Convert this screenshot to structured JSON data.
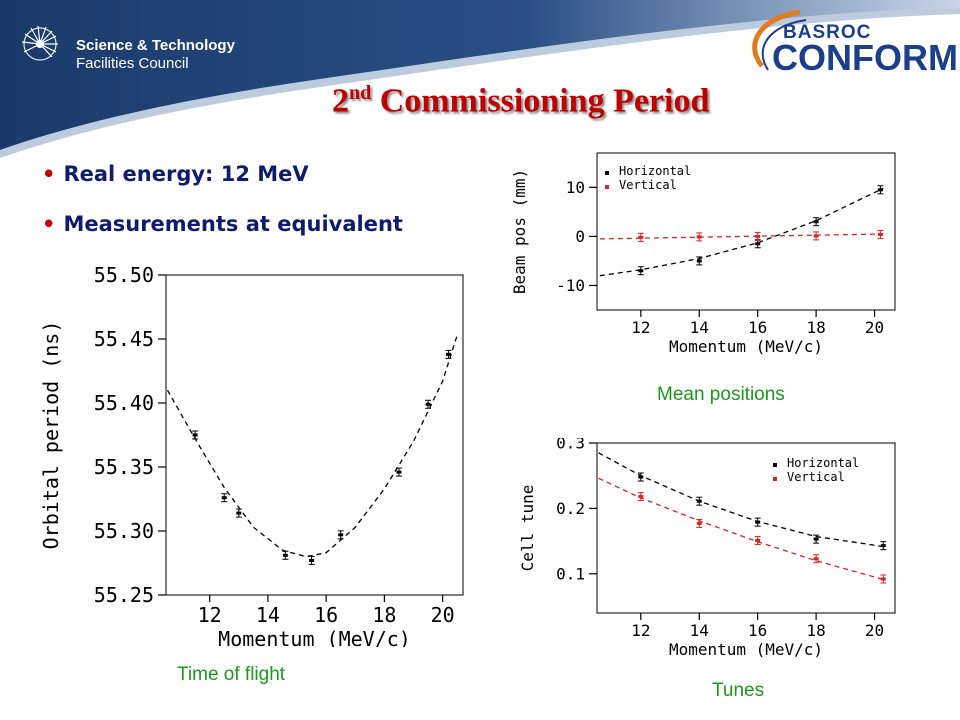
{
  "header": {
    "org_line1": "Science & Technology",
    "org_line2": "Facilities Council",
    "brand_top": "BASROC",
    "brand_main": "CONFORM",
    "colors": {
      "banner": "#1d3d6e",
      "title": "#c00000",
      "bullet_text": "#0d1d6b",
      "caption": "#1a9a1a"
    }
  },
  "title": {
    "ordinal": "2",
    "suffix": "nd",
    "rest": " Commissioning Period"
  },
  "bullets": [
    "Real energy: 12 MeV",
    "Measurements at equivalent"
  ],
  "captions": {
    "tof": "Time of flight",
    "mean": "Mean positions",
    "tunes": "Tunes"
  },
  "chart_data": [
    {
      "type": "scatter",
      "xlabel": "Momentum (MeV/c)",
      "ylabel": "Orbital period (ns)",
      "xlim": [
        10.5,
        20.7
      ],
      "ylim": [
        55.25,
        55.5
      ],
      "xticks": [
        12,
        14,
        16,
        18,
        20
      ],
      "yticks": [
        "55.25",
        "55.30",
        "55.35",
        "55.40",
        "55.45",
        "55.50"
      ],
      "series": [
        {
          "points": [
            [
              11.5,
              55.375
            ],
            [
              12.5,
              55.326
            ],
            [
              13.0,
              55.314
            ],
            [
              14.6,
              55.281
            ],
            [
              15.5,
              55.277
            ],
            [
              16.5,
              55.297
            ],
            [
              18.5,
              55.346
            ],
            [
              19.5,
              55.399
            ],
            [
              20.2,
              55.438
            ]
          ],
          "fit": [
            [
              10.55,
              55.41
            ],
            [
              11.5,
              55.372
            ],
            [
              12.5,
              55.334
            ],
            [
              13.5,
              55.303
            ],
            [
              14.5,
              55.285
            ],
            [
              15.3,
              55.28
            ],
            [
              16.0,
              55.283
            ],
            [
              17.0,
              55.303
            ],
            [
              18.0,
              55.333
            ],
            [
              19.0,
              55.37
            ],
            [
              20.0,
              55.417
            ],
            [
              20.5,
              55.453
            ]
          ]
        }
      ]
    },
    {
      "type": "scatter",
      "xlabel": "Momentum (MeV/c)",
      "ylabel": "Beam pos (mm)",
      "xlim": [
        10.5,
        20.7
      ],
      "ylim": [
        -15,
        17
      ],
      "xticks": [
        12,
        14,
        16,
        18,
        20
      ],
      "yticks": [
        "-10",
        "0",
        "10"
      ],
      "legend": "top-left",
      "series": [
        {
          "name": "Horizontal",
          "color": "#000000",
          "points": [
            [
              12,
              -7
            ],
            [
              14,
              -5
            ],
            [
              16,
              -1.5
            ],
            [
              18,
              3
            ],
            [
              20.2,
              9.5
            ]
          ],
          "fit": [
            [
              10.6,
              -8
            ],
            [
              12,
              -6.8
            ],
            [
              14,
              -4.5
            ],
            [
              16,
              -1.3
            ],
            [
              18,
              3.2
            ],
            [
              20.3,
              9.8
            ]
          ]
        },
        {
          "name": "Vertical",
          "color": "#dd2222",
          "points": [
            [
              12,
              -0.2
            ],
            [
              14,
              -0.1
            ],
            [
              16,
              0.0
            ],
            [
              18,
              0.1
            ],
            [
              20.2,
              0.4
            ]
          ],
          "fit": [
            [
              10.6,
              -0.5
            ],
            [
              20.3,
              0.5
            ]
          ]
        }
      ]
    },
    {
      "type": "scatter",
      "xlabel": "Momentum (MeV/c)",
      "ylabel": "Cell tune",
      "xlim": [
        10.5,
        20.7
      ],
      "ylim": [
        0.04,
        0.3
      ],
      "xticks": [
        12,
        14,
        16,
        18,
        20
      ],
      "yticks": [
        "0.1",
        "0.2",
        "0.3"
      ],
      "legend": "top-right",
      "series": [
        {
          "name": "Horizontal",
          "color": "#000000",
          "points": [
            [
              12,
              0.248
            ],
            [
              14,
              0.211
            ],
            [
              16,
              0.179
            ],
            [
              18,
              0.153
            ],
            [
              20.3,
              0.143
            ]
          ],
          "fit": [
            [
              10.55,
              0.285
            ],
            [
              12,
              0.25
            ],
            [
              14,
              0.211
            ],
            [
              16,
              0.18
            ],
            [
              18,
              0.157
            ],
            [
              20.4,
              0.141
            ]
          ]
        },
        {
          "name": "Vertical",
          "color": "#dd2222",
          "points": [
            [
              12,
              0.218
            ],
            [
              14,
              0.177
            ],
            [
              16,
              0.151
            ],
            [
              18,
              0.123
            ],
            [
              20.3,
              0.092
            ]
          ],
          "fit": [
            [
              10.55,
              0.246
            ],
            [
              12,
              0.216
            ],
            [
              14,
              0.181
            ],
            [
              16,
              0.149
            ],
            [
              18,
              0.12
            ],
            [
              20.4,
              0.09
            ]
          ]
        }
      ]
    }
  ]
}
